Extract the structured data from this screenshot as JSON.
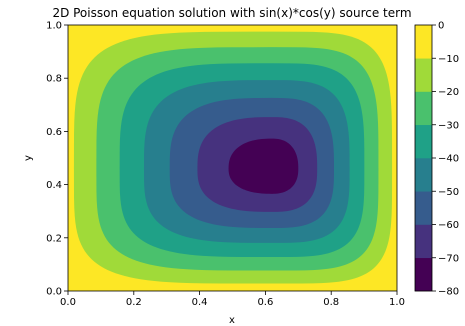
{
  "chart_data": {
    "type": "contourf",
    "title": "2D Poisson equation solution with sin(x)*cos(y) source term",
    "xlabel": "x",
    "ylabel": "y",
    "xlim": [
      0.0,
      1.0
    ],
    "ylim": [
      0.0,
      1.0
    ],
    "x_ticks": [
      "0.0",
      "0.2",
      "0.4",
      "0.6",
      "0.8",
      "1.0"
    ],
    "y_ticks": [
      "0.0",
      "0.2",
      "0.4",
      "0.6",
      "0.8",
      "1.0"
    ],
    "colorbar": {
      "range": [
        -80,
        0
      ],
      "levels": [
        -80,
        -70,
        -60,
        -50,
        -40,
        -30,
        -20,
        -10,
        0
      ],
      "tick_labels": [
        "0",
        "−10",
        "−20",
        "−30",
        "−40",
        "−50",
        "−60",
        "−70",
        "−80"
      ],
      "colors": [
        "#440154",
        "#46327e",
        "#365c8d",
        "#277f8e",
        "#1fa187",
        "#4ac16d",
        "#a0da39",
        "#fde725"
      ]
    },
    "minimum": {
      "x": 0.62,
      "y": 0.46,
      "value": -78
    },
    "colormap": "viridis",
    "grid": false
  }
}
